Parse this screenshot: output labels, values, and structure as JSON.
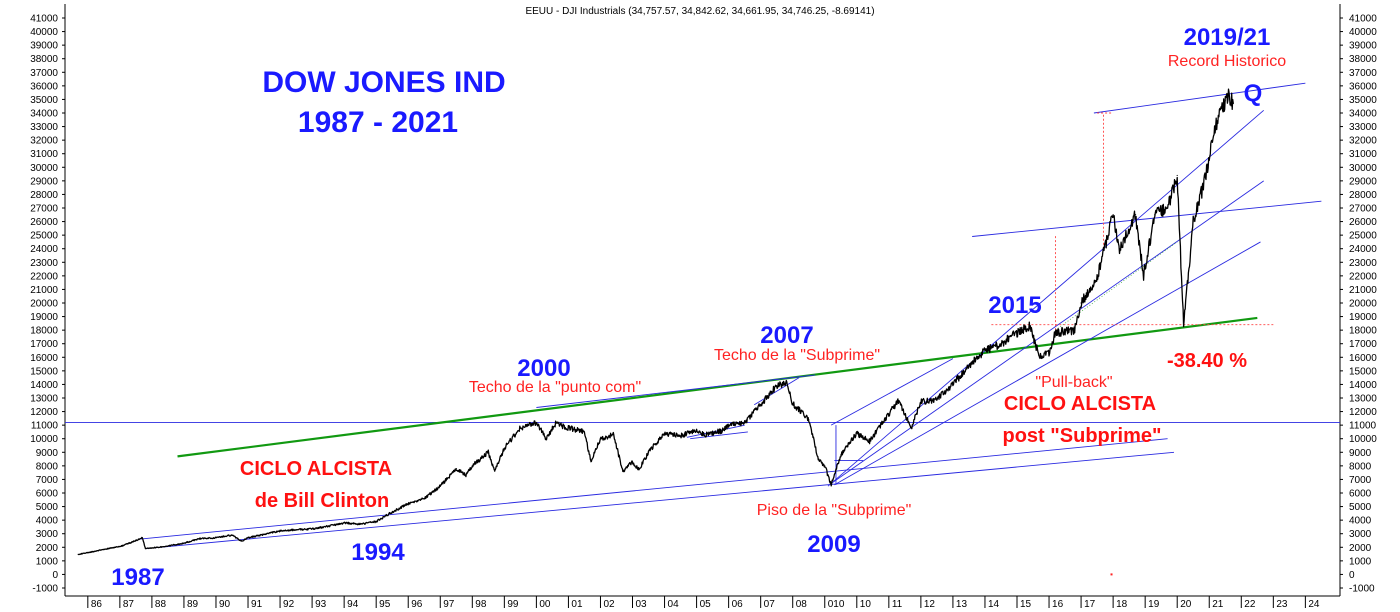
{
  "header": "EEUU - DJI  Industrials (34,757.57, 34,842.62, 34,661.95, 34,746.25, -8.69141)",
  "chart_data": {
    "type": "line",
    "title_lines": [
      "DOW JONES IND",
      "1987 - 2021"
    ],
    "y_range": [
      -1000,
      41000
    ],
    "y_ticks": [
      -1000,
      0,
      1000,
      2000,
      3000,
      4000,
      5000,
      6000,
      7000,
      8000,
      9000,
      10000,
      11000,
      12000,
      13000,
      14000,
      15000,
      16000,
      17000,
      18000,
      19000,
      20000,
      21000,
      22000,
      23000,
      24000,
      25000,
      26000,
      27000,
      28000,
      29000,
      30000,
      31000,
      32000,
      33000,
      34000,
      35000,
      36000,
      37000,
      38000,
      39000,
      40000,
      41000
    ],
    "x_range": [
      1985.6,
      2024.8
    ],
    "x_ticks": [
      {
        "year": 1986,
        "label": "86"
      },
      {
        "year": 1987,
        "label": "87"
      },
      {
        "year": 1988,
        "label": "88"
      },
      {
        "year": 1989,
        "label": "89"
      },
      {
        "year": 1990,
        "label": "90"
      },
      {
        "year": 1991,
        "label": "91"
      },
      {
        "year": 1992,
        "label": "92"
      },
      {
        "year": 1993,
        "label": "93"
      },
      {
        "year": 1994,
        "label": "94"
      },
      {
        "year": 1995,
        "label": "95"
      },
      {
        "year": 1996,
        "label": "96"
      },
      {
        "year": 1997,
        "label": "97"
      },
      {
        "year": 1998,
        "label": "98"
      },
      {
        "year": 1999,
        "label": "99"
      },
      {
        "year": 2000,
        "label": "00"
      },
      {
        "year": 2001,
        "label": "01"
      },
      {
        "year": 2002,
        "label": "02"
      },
      {
        "year": 2003,
        "label": "03"
      },
      {
        "year": 2004,
        "label": "04"
      },
      {
        "year": 2005,
        "label": "05"
      },
      {
        "year": 2006,
        "label": "06"
      },
      {
        "year": 2007,
        "label": "07"
      },
      {
        "year": 2008,
        "label": "08"
      },
      {
        "year": 2009,
        "label": "010"
      },
      {
        "year": 2010,
        "label": "10"
      },
      {
        "year": 2011,
        "label": "11"
      },
      {
        "year": 2012,
        "label": "12"
      },
      {
        "year": 2013,
        "label": "13"
      },
      {
        "year": 2014,
        "label": "14"
      },
      {
        "year": 2015,
        "label": "15"
      },
      {
        "year": 2016,
        "label": "16"
      },
      {
        "year": 2017,
        "label": "17"
      },
      {
        "year": 2018,
        "label": "18"
      },
      {
        "year": 2019,
        "label": "19"
      },
      {
        "year": 2020,
        "label": "20"
      },
      {
        "year": 2021,
        "label": "21"
      },
      {
        "year": 2022,
        "label": "22"
      },
      {
        "year": 2023,
        "label": "23"
      },
      {
        "year": 2024,
        "label": "24"
      }
    ],
    "series": [
      {
        "color": "#000000",
        "points": [
          [
            1985.7,
            1480
          ],
          [
            1986.0,
            1600
          ],
          [
            1986.5,
            1850
          ],
          [
            1987.0,
            2050
          ],
          [
            1987.4,
            2400
          ],
          [
            1987.7,
            2700
          ],
          [
            1987.8,
            1900
          ],
          [
            1988.0,
            1950
          ],
          [
            1988.5,
            2100
          ],
          [
            1989.0,
            2300
          ],
          [
            1989.5,
            2650
          ],
          [
            1990.0,
            2700
          ],
          [
            1990.5,
            2900
          ],
          [
            1990.8,
            2450
          ],
          [
            1991.0,
            2700
          ],
          [
            1991.5,
            2950
          ],
          [
            1992.0,
            3200
          ],
          [
            1992.5,
            3300
          ],
          [
            1993.0,
            3350
          ],
          [
            1993.5,
            3550
          ],
          [
            1994.0,
            3800
          ],
          [
            1994.5,
            3700
          ],
          [
            1995.0,
            3900
          ],
          [
            1995.5,
            4600
          ],
          [
            1996.0,
            5200
          ],
          [
            1996.5,
            5600
          ],
          [
            1997.0,
            6500
          ],
          [
            1997.5,
            7800
          ],
          [
            1997.8,
            7300
          ],
          [
            1998.0,
            8000
          ],
          [
            1998.5,
            9000
          ],
          [
            1998.7,
            7600
          ],
          [
            1999.0,
            9300
          ],
          [
            1999.5,
            10800
          ],
          [
            2000.0,
            11200
          ],
          [
            2000.3,
            10000
          ],
          [
            2000.6,
            11100
          ],
          [
            2001.0,
            10800
          ],
          [
            2001.5,
            10500
          ],
          [
            2001.7,
            8300
          ],
          [
            2002.0,
            10000
          ],
          [
            2002.4,
            10300
          ],
          [
            2002.7,
            7600
          ],
          [
            2003.0,
            8300
          ],
          [
            2003.2,
            7700
          ],
          [
            2003.5,
            9000
          ],
          [
            2004.0,
            10400
          ],
          [
            2004.5,
            10200
          ],
          [
            2004.9,
            10600
          ],
          [
            2005.3,
            10300
          ],
          [
            2005.8,
            10600
          ],
          [
            2006.0,
            11000
          ],
          [
            2006.5,
            11200
          ],
          [
            2007.0,
            12500
          ],
          [
            2007.5,
            13900
          ],
          [
            2007.8,
            14100
          ],
          [
            2008.0,
            12600
          ],
          [
            2008.5,
            11400
          ],
          [
            2008.8,
            8500
          ],
          [
            2009.0,
            8000
          ],
          [
            2009.2,
            6600
          ],
          [
            2009.5,
            8800
          ],
          [
            2010.0,
            10400
          ],
          [
            2010.4,
            9800
          ],
          [
            2010.9,
            11500
          ],
          [
            2011.3,
            12800
          ],
          [
            2011.7,
            10800
          ],
          [
            2012.0,
            12700
          ],
          [
            2012.5,
            12900
          ],
          [
            2013.0,
            14000
          ],
          [
            2013.5,
            15400
          ],
          [
            2014.0,
            16500
          ],
          [
            2014.5,
            17000
          ],
          [
            2015.0,
            17800
          ],
          [
            2015.4,
            18300
          ],
          [
            2015.7,
            16000
          ],
          [
            2016.0,
            16300
          ],
          [
            2016.2,
            17800
          ],
          [
            2016.8,
            18000
          ],
          [
            2017.0,
            20000
          ],
          [
            2017.5,
            21900
          ],
          [
            2018.0,
            26500
          ],
          [
            2018.2,
            24000
          ],
          [
            2018.7,
            26500
          ],
          [
            2018.95,
            22000
          ],
          [
            2019.3,
            26500
          ],
          [
            2019.7,
            27000
          ],
          [
            2020.0,
            29400
          ],
          [
            2020.2,
            18300
          ],
          [
            2020.5,
            26000
          ],
          [
            2020.8,
            28500
          ],
          [
            2020.95,
            30000
          ],
          [
            2021.2,
            33000
          ],
          [
            2021.5,
            34900
          ],
          [
            2021.6,
            35400
          ],
          [
            2021.75,
            34700
          ]
        ]
      }
    ],
    "annotations": {
      "red_labels": [
        "Techo de la \"punto com\"",
        "Techo de la \"Subprime\"",
        "Piso de la \"Subprime\"",
        "\"Pull-back\"",
        "Record Historico"
      ],
      "blue_labels": [
        "1987",
        "1994",
        "2000",
        "2007",
        "2009",
        "2015",
        "2019/21",
        "Q"
      ],
      "cycle_labels": [
        [
          "CICLO ALCISTA",
          "de Bill Clinton"
        ],
        [
          "CICLO ALCISTA",
          "post \"Subprime\""
        ]
      ],
      "percent_label": "-38.40 %"
    },
    "colors": {
      "price": "#000000",
      "trend_blue": "#2a2ae0",
      "trend_green": "#119911",
      "label_blue": "#1a1aff",
      "label_red": "#ff2222"
    }
  }
}
